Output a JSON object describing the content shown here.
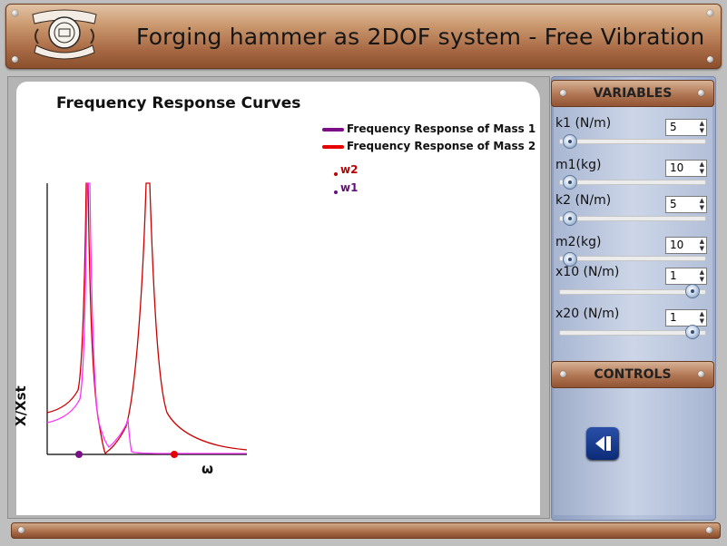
{
  "header": {
    "title": "Forging hammer as 2DOF system - Free Vibration",
    "logo_icon": "institute-emblem-icon"
  },
  "chart": {
    "title": "Frequency Response Curves",
    "legend": [
      {
        "label": "Frequency Response of Mass 1",
        "color": "#7b0d87"
      },
      {
        "label": "Frequency Response of Mass 2",
        "color": "#e60000"
      }
    ],
    "markers": [
      {
        "label": "w2",
        "color": "#c00000"
      },
      {
        "label": "w1",
        "color": "#660f7a"
      }
    ],
    "ylabel": "X/Xst",
    "xlabel": "ω"
  },
  "chart_data": {
    "type": "line",
    "title": "Frequency Response Curves",
    "xlabel": "ω",
    "ylabel": "X/Xst",
    "grid": false,
    "legend_position": "top-right",
    "series": [
      {
        "name": "Frequency Response of Mass 1",
        "color": "#ff33ff",
        "shape": "resonance peaks near w1, w2 = 0"
      },
      {
        "name": "Frequency Response of Mass 2",
        "color": "#cc0000",
        "shape": "resonance peaks near w1 and w2"
      }
    ],
    "natural_frequencies": [
      {
        "name": "w1",
        "color": "#7b0d87"
      },
      {
        "name": "w2",
        "color": "#e60000"
      }
    ]
  },
  "variables": {
    "heading": "VARIABLES",
    "items": [
      {
        "label": "k1 (N/m)",
        "value": "5",
        "slider_fraction": 0.0
      },
      {
        "label": "m1(kg)",
        "value": "10",
        "slider_fraction": 0.0
      },
      {
        "label": "k2 (N/m)",
        "value": "5",
        "slider_fraction": 0.0
      },
      {
        "label": "m2(kg)",
        "value": "10",
        "slider_fraction": 0.0
      },
      {
        "label": "x10 (N/m)",
        "value": "1",
        "slider_fraction": 1.0
      },
      {
        "label": "x20 (N/m)",
        "value": "1",
        "slider_fraction": 1.0
      }
    ]
  },
  "controls": {
    "heading": "CONTROLS",
    "back_icon": "step-back-icon"
  },
  "colors": {
    "header_wood": "#a86a45",
    "panel_blue": "#b8c4dc",
    "button_blue": "#1a3d92"
  }
}
